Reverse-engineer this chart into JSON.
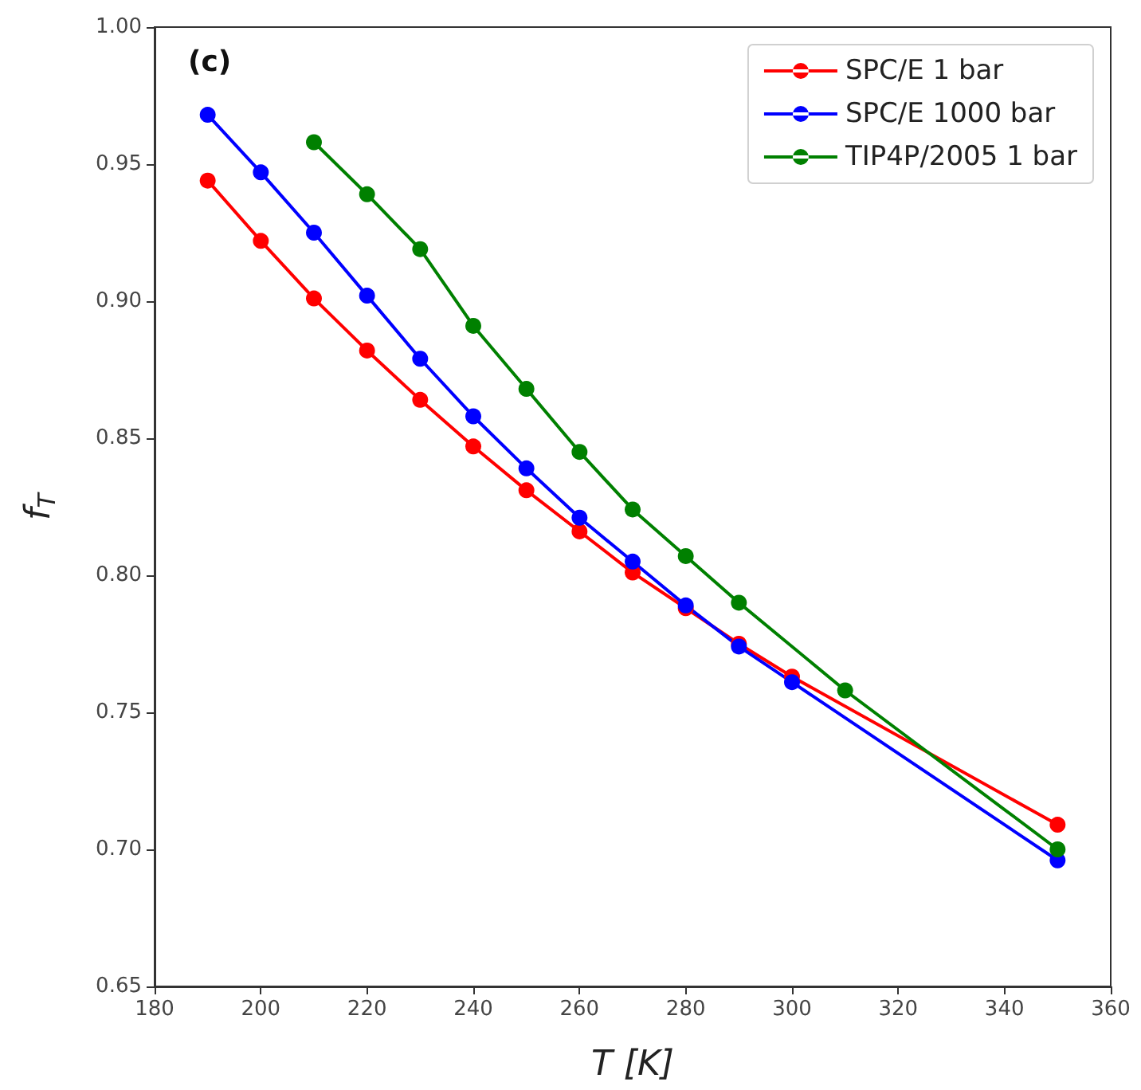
{
  "chart_data": {
    "type": "line",
    "xlabel": "T [K]",
    "ylabel": "f$_{T}$",
    "annotations": [
      "(c)"
    ],
    "xlim": [
      180,
      360
    ],
    "xticks": [
      180,
      200,
      220,
      240,
      260,
      280,
      300,
      320,
      340,
      360
    ],
    "ylim": [
      0.65,
      1.0
    ],
    "yticks": [
      0.65,
      {
        "value": 0.7,
        "label": "0.70"
      },
      0.75,
      {
        "value": 0.8,
        "label": "0.80"
      },
      0.85,
      {
        "value": 0.9,
        "label": "0.90"
      },
      0.95,
      {
        "value": 1.0,
        "label": "1.00"
      }
    ],
    "grid": false,
    "legend": "top right",
    "marker": "circle",
    "line_style": "solid",
    "series": [
      {
        "name": "SPC/E 1 bar",
        "color": "#ff0000",
        "x": [
          190,
          200,
          210,
          220,
          230,
          240,
          250,
          260,
          270,
          280,
          290,
          300,
          350
        ],
        "values": [
          0.944,
          0.922,
          0.901,
          0.882,
          0.864,
          0.847,
          0.831,
          0.816,
          0.801,
          0.788,
          0.775,
          0.763,
          0.709
        ]
      },
      {
        "name": "SPC/E 1000 bar",
        "color": "#0000ff",
        "x": [
          190,
          200,
          210,
          220,
          230,
          240,
          250,
          260,
          270,
          280,
          290,
          300,
          350
        ],
        "values": [
          0.968,
          0.947,
          0.925,
          0.902,
          0.879,
          0.858,
          0.839,
          0.821,
          0.805,
          0.789,
          0.774,
          0.761,
          0.696
        ]
      },
      {
        "name": "TIP4P/2005 1 bar",
        "color": "#008000",
        "x": [
          210,
          220,
          230,
          240,
          250,
          260,
          270,
          280,
          290,
          310,
          350
        ],
        "values": [
          0.958,
          0.939,
          0.919,
          0.891,
          0.868,
          0.845,
          0.824,
          0.807,
          0.79,
          0.758,
          0.7
        ]
      }
    ]
  }
}
